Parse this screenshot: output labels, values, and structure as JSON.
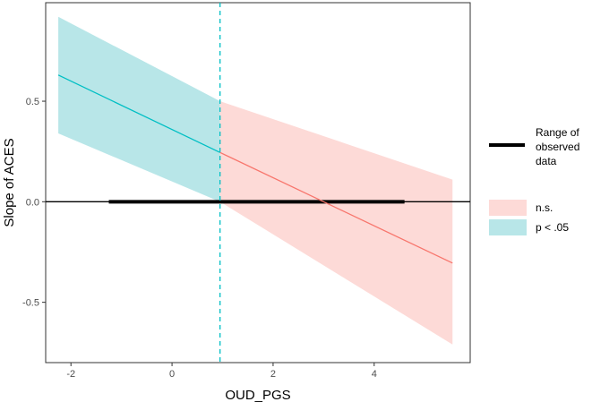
{
  "chart_data": {
    "type": "line",
    "xlabel": "OUD_PGS",
    "ylabel": "Slope of ACES",
    "xlim": [
      -2.5,
      5.9
    ],
    "ylim": [
      -0.8,
      0.99
    ],
    "x_ticks": [
      -2,
      0,
      2,
      4
    ],
    "y_ticks": [
      -0.5,
      0.0,
      0.5
    ],
    "x_tick_labels": [
      "-2",
      "0",
      "2",
      "4"
    ],
    "y_tick_labels": [
      "-0.5",
      "0.0",
      "0.5"
    ],
    "grid": false,
    "series": [
      {
        "name": "p < .05",
        "color": "#00BFC4",
        "fill": "#B8E6E8",
        "x": [
          -2.25,
          0.95
        ],
        "y": [
          0.63,
          0.245
        ],
        "ci_lower": [
          0.34,
          0.0
        ],
        "ci_upper": [
          0.92,
          0.5
        ]
      },
      {
        "name": "n.s.",
        "color": "#F8766D",
        "fill": "#FDDAD7",
        "x": [
          0.95,
          5.55
        ],
        "y": [
          0.245,
          -0.305
        ],
        "ci_lower": [
          0.0,
          -0.71
        ],
        "ci_upper": [
          0.5,
          0.11
        ]
      }
    ],
    "reference_hline": {
      "y": 0.0,
      "color": "#000000"
    },
    "observed_range": {
      "x": [
        -1.25,
        4.6
      ],
      "y": 0.0,
      "color": "#000000"
    },
    "johnson_neyman": {
      "x": 0.95,
      "color": "#00BFC4"
    },
    "legend": {
      "position": "right",
      "line_entry": [
        "Range of",
        "observed",
        "data"
      ],
      "fill_entries": [
        {
          "label": "n.s.",
          "color": "#FDDAD7"
        },
        {
          "label": "p < .05",
          "color": "#B8E6E8"
        }
      ]
    }
  }
}
